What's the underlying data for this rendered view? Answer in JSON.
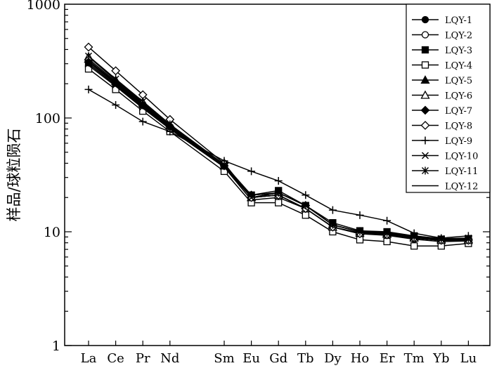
{
  "chart_data": {
    "type": "line",
    "title": "",
    "xlabel": "",
    "ylabel": "样品/球粒陨石",
    "yscale": "log",
    "ylim": [
      1,
      1000
    ],
    "y_ticks": [
      "1",
      "10",
      "100",
      "1000"
    ],
    "grid": false,
    "legend_position": "top-right",
    "categories": [
      "La",
      "Ce",
      "Pr",
      "Nd",
      "Sm",
      "Eu",
      "Gd",
      "Tb",
      "Dy",
      "Ho",
      "Er",
      "Tm",
      "Yb",
      "Lu"
    ],
    "x": [
      0,
      1,
      2,
      3,
      5,
      6,
      7,
      8,
      9,
      10,
      11,
      12,
      13,
      14
    ],
    "series": [
      {
        "name": "LQY-1",
        "marker": "circle-filled",
        "values": [
          320,
          205,
          132,
          84,
          38,
          20,
          22,
          17,
          11.5,
          10,
          9.8,
          9.0,
          8.5,
          8.5
        ]
      },
      {
        "name": "LQY-2",
        "marker": "circle-open",
        "values": [
          310,
          200,
          128,
          82,
          37,
          19,
          20,
          16,
          11,
          9.6,
          9.3,
          8.6,
          8.2,
          8.3
        ]
      },
      {
        "name": "LQY-3",
        "marker": "square-filled",
        "values": [
          300,
          195,
          125,
          80,
          37,
          21,
          23,
          17,
          12,
          10.2,
          10,
          9.2,
          8.6,
          8.7
        ]
      },
      {
        "name": "LQY-4",
        "marker": "square-open",
        "values": [
          270,
          178,
          115,
          76,
          34,
          18,
          18,
          14,
          10,
          8.5,
          8.2,
          7.5,
          7.5,
          7.9
        ]
      },
      {
        "name": "LQY-5",
        "marker": "triangle-filled",
        "values": [
          330,
          210,
          135,
          86,
          38,
          20,
          22,
          17,
          11.5,
          10,
          9.7,
          9.0,
          8.6,
          8.6
        ]
      },
      {
        "name": "LQY-6",
        "marker": "triangle-open",
        "values": [
          345,
          215,
          138,
          86,
          38,
          20,
          21,
          16,
          11,
          9.7,
          9.5,
          8.8,
          8.4,
          8.4
        ]
      },
      {
        "name": "LQY-7",
        "marker": "diamond-filled",
        "values": [
          310,
          205,
          130,
          84,
          38,
          21,
          22,
          17,
          11.5,
          10,
          9.7,
          9.0,
          8.5,
          8.6
        ]
      },
      {
        "name": "LQY-8",
        "marker": "diamond-open",
        "values": [
          420,
          260,
          160,
          97,
          40,
          20,
          21,
          16,
          11,
          9.6,
          9.4,
          8.8,
          8.4,
          8.4
        ]
      },
      {
        "name": "LQY-9",
        "marker": "plus",
        "values": [
          178,
          130,
          93,
          76,
          42,
          34,
          28,
          21,
          15.5,
          14,
          12.5,
          9.7,
          8.8,
          9.2
        ]
      },
      {
        "name": "LQY-10",
        "marker": "x",
        "values": [
          300,
          195,
          125,
          82,
          38,
          20,
          22,
          17,
          11.5,
          10,
          9.8,
          9.2,
          8.7,
          8.8
        ]
      },
      {
        "name": "LQY-11",
        "marker": "asterisk",
        "values": [
          350,
          220,
          140,
          88,
          39,
          21,
          22,
          17,
          11.5,
          10,
          9.7,
          9.0,
          8.6,
          8.6
        ]
      },
      {
        "name": "LQY-12",
        "marker": "none",
        "values": [
          290,
          190,
          122,
          80,
          37,
          20,
          21,
          16,
          11,
          9.8,
          9.5,
          8.8,
          8.4,
          8.5
        ]
      }
    ]
  }
}
